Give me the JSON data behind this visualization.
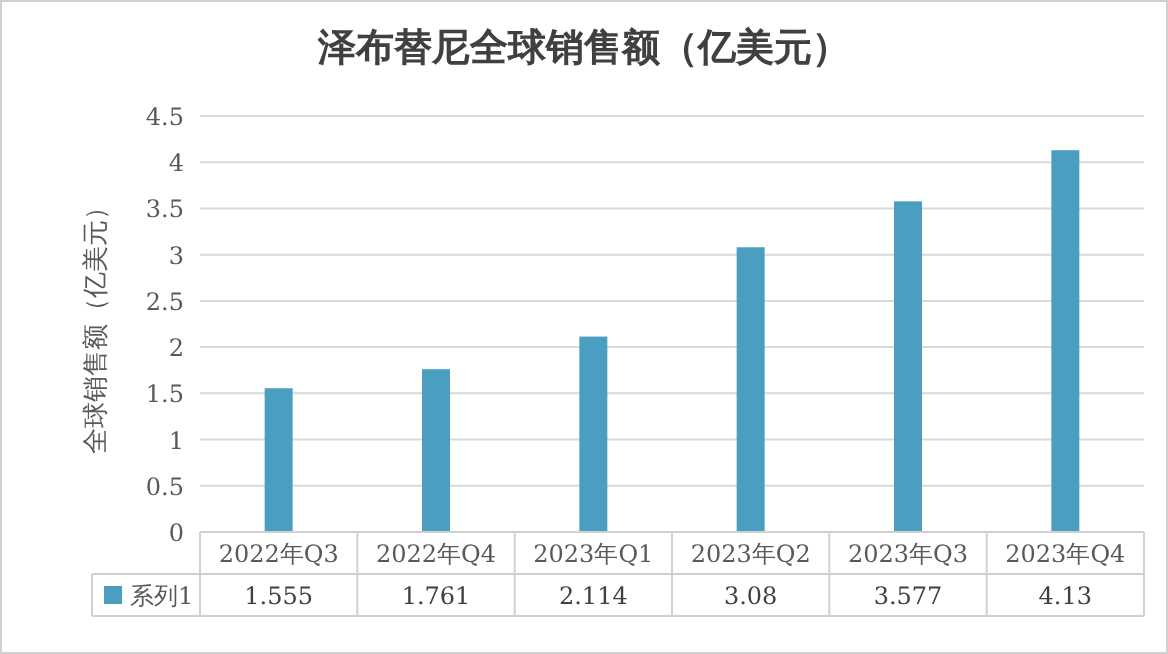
{
  "chart_data": {
    "type": "bar",
    "title": "泽布替尼全球销售额（亿美元）",
    "ylabel": "全球销售额（亿美元）",
    "categories": [
      "2022年Q3",
      "2022年Q4",
      "2023年Q1",
      "2023年Q2",
      "2023年Q3",
      "2023年Q4"
    ],
    "series": [
      {
        "name": "系列1",
        "color": "#4a9ec0",
        "values": [
          1.555,
          1.761,
          2.114,
          3.08,
          3.577,
          4.13
        ]
      }
    ],
    "ylim": [
      0,
      4.5
    ],
    "yticks": [
      0,
      0.5,
      1,
      1.5,
      2,
      2.5,
      3,
      3.5,
      4,
      4.5
    ],
    "grid": "y",
    "data_labels": true,
    "legend": "bottom"
  }
}
